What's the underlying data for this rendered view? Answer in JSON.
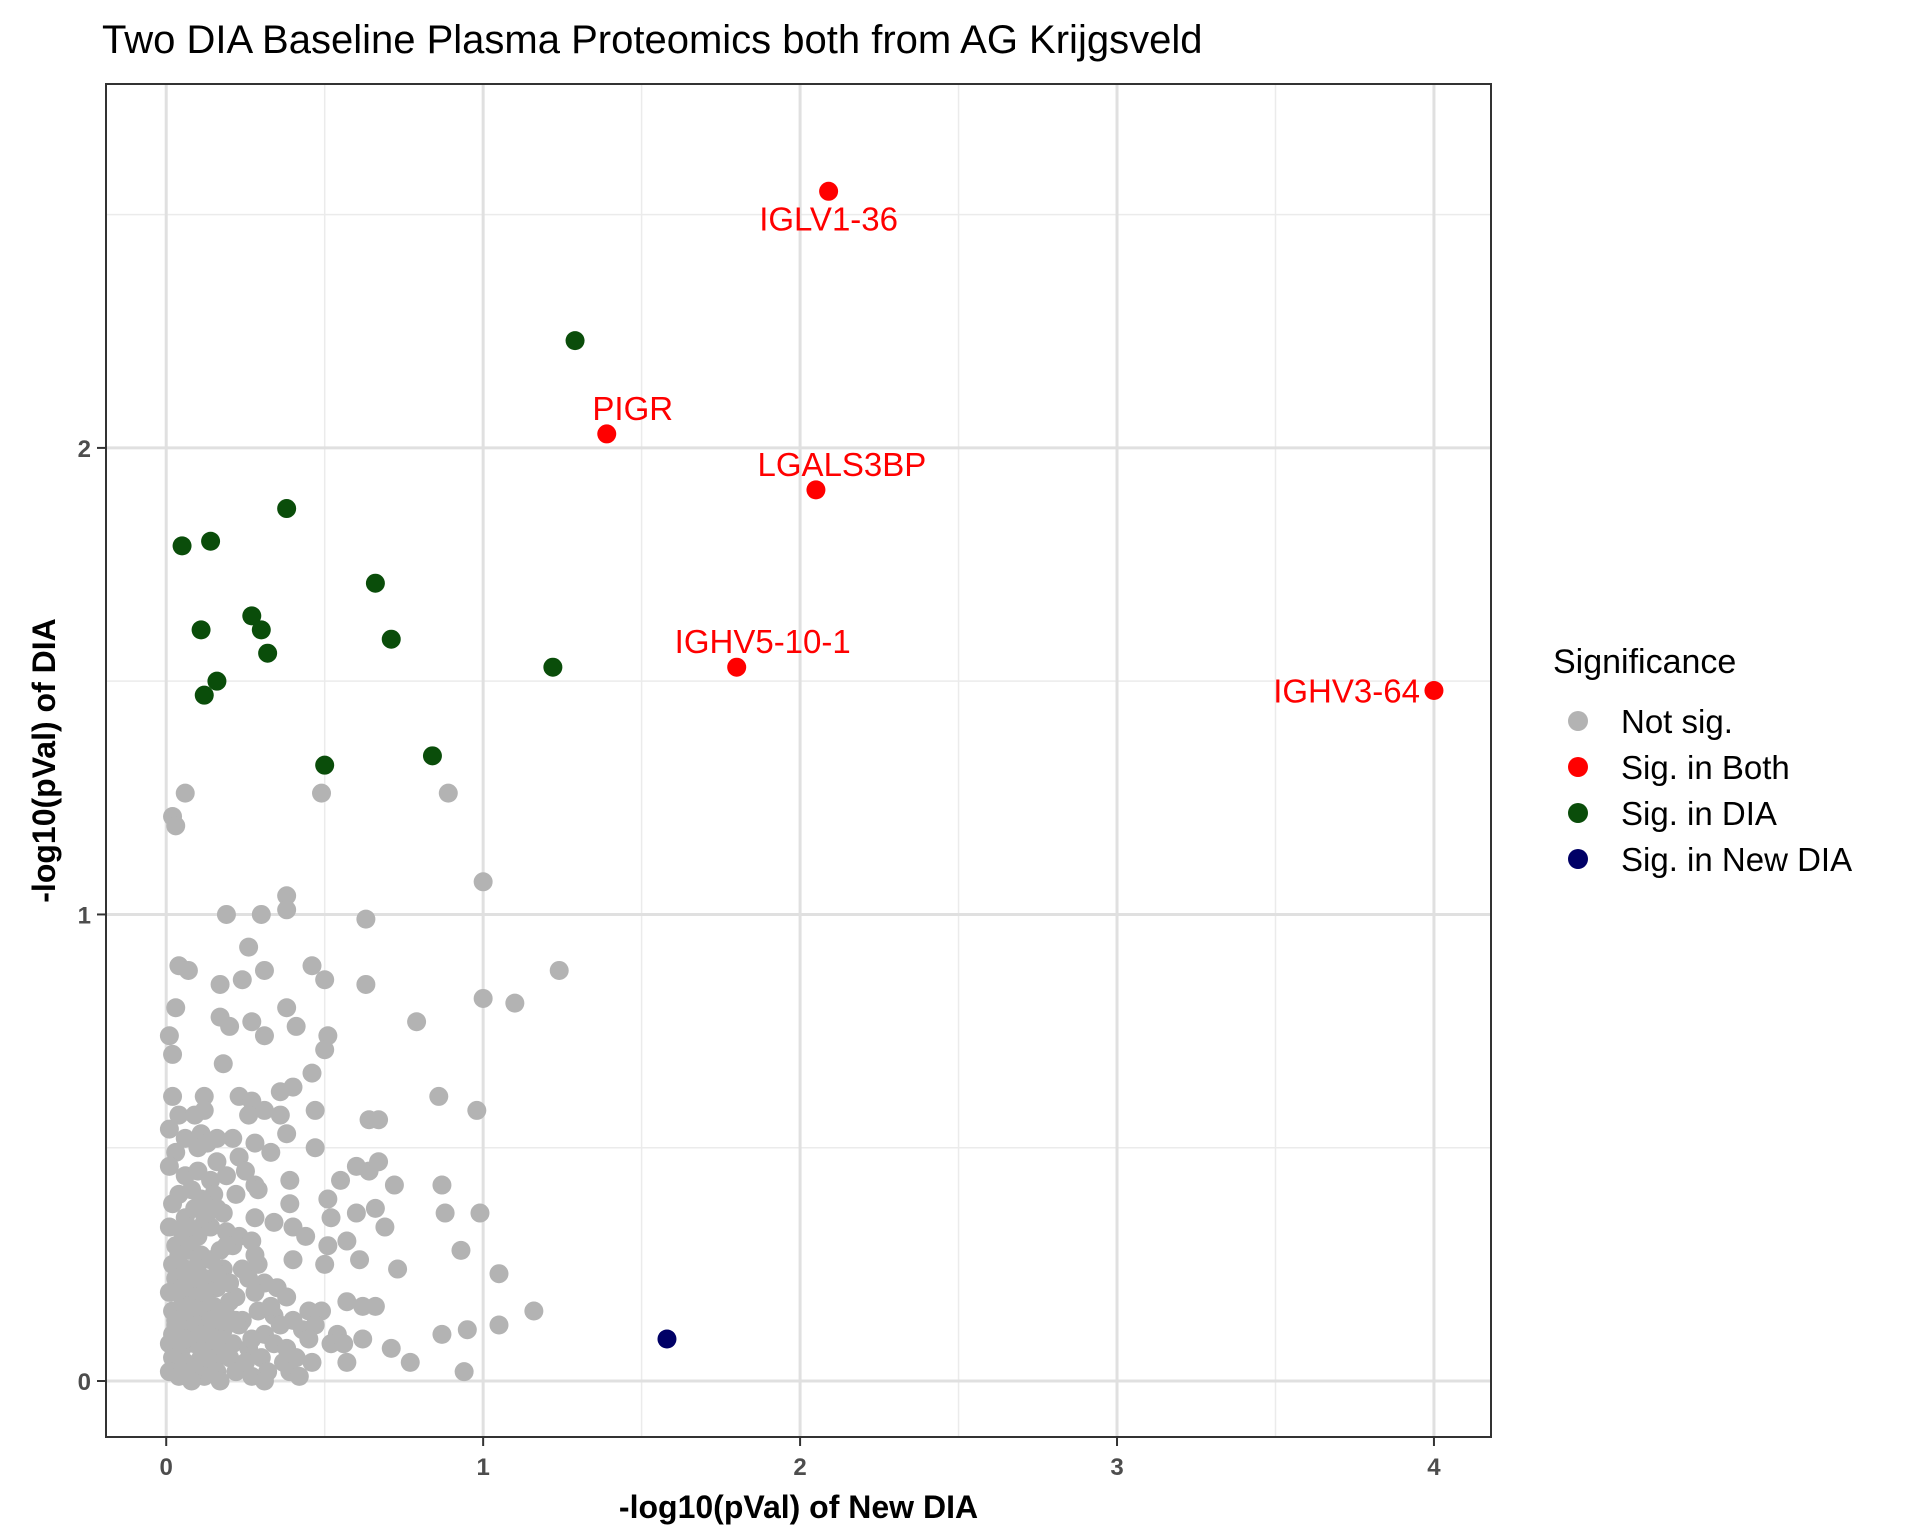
{
  "chart_data": {
    "type": "scatter",
    "title": "Two DIA Baseline Plasma Proteomics both from AG Krijgsveld",
    "xlabel": "-log10(pVal) of New DIA",
    "ylabel": "-log10(pVal) of DIA",
    "xlim": [
      -0.19,
      4.18
    ],
    "ylim": [
      -0.12,
      2.78
    ],
    "x_ticks": [
      0,
      1,
      2,
      3,
      4
    ],
    "y_ticks": [
      0,
      1,
      2
    ],
    "x_tick_labels": [
      "0",
      "1",
      "2",
      "3",
      "4"
    ],
    "y_tick_labels": [
      "0",
      "1",
      "2"
    ],
    "grid": true,
    "legend": {
      "title": "Significance",
      "position": "right",
      "entries": [
        {
          "label": "Not sig.",
          "color": "#b3b3b3"
        },
        {
          "label": "Sig. in Both",
          "color": "#ff0000"
        },
        {
          "label": "Sig. in DIA",
          "color": "#0a4d0a"
        },
        {
          "label": "Sig. in New DIA",
          "color": "#000066"
        }
      ]
    },
    "series": [
      {
        "name": "Not sig.",
        "color": "#b3b3b3",
        "points": [
          [
            0.02,
            1.21
          ],
          [
            0.03,
            1.19
          ],
          [
            0.06,
            1.26
          ],
          [
            0.49,
            1.26
          ],
          [
            0.89,
            1.26
          ],
          [
            1.0,
            1.07
          ],
          [
            0.38,
            1.04
          ],
          [
            0.19,
            1.0
          ],
          [
            0.3,
            1.0
          ],
          [
            0.38,
            1.01
          ],
          [
            0.63,
            0.99
          ],
          [
            0.26,
            0.93
          ],
          [
            0.04,
            0.89
          ],
          [
            0.07,
            0.88
          ],
          [
            0.31,
            0.88
          ],
          [
            0.46,
            0.89
          ],
          [
            0.5,
            0.86
          ],
          [
            0.17,
            0.85
          ],
          [
            0.24,
            0.86
          ],
          [
            0.63,
            0.85
          ],
          [
            1.24,
            0.88
          ],
          [
            0.03,
            0.8
          ],
          [
            1.0,
            0.82
          ],
          [
            1.1,
            0.81
          ],
          [
            0.17,
            0.78
          ],
          [
            0.2,
            0.76
          ],
          [
            0.27,
            0.77
          ],
          [
            0.38,
            0.8
          ],
          [
            0.41,
            0.76
          ],
          [
            0.79,
            0.77
          ],
          [
            0.01,
            0.74
          ],
          [
            0.31,
            0.74
          ],
          [
            0.51,
            0.74
          ],
          [
            0.02,
            0.7
          ],
          [
            0.5,
            0.71
          ],
          [
            0.18,
            0.68
          ],
          [
            0.46,
            0.66
          ],
          [
            0.02,
            0.61
          ],
          [
            0.12,
            0.61
          ],
          [
            0.23,
            0.61
          ],
          [
            0.27,
            0.6
          ],
          [
            0.36,
            0.62
          ],
          [
            0.4,
            0.63
          ],
          [
            0.86,
            0.61
          ],
          [
            0.04,
            0.57
          ],
          [
            0.09,
            0.57
          ],
          [
            0.12,
            0.58
          ],
          [
            0.26,
            0.57
          ],
          [
            0.31,
            0.58
          ],
          [
            0.36,
            0.57
          ],
          [
            0.47,
            0.58
          ],
          [
            0.64,
            0.56
          ],
          [
            0.67,
            0.56
          ],
          [
            0.98,
            0.58
          ],
          [
            0.01,
            0.54
          ],
          [
            0.06,
            0.52
          ],
          [
            0.11,
            0.53
          ],
          [
            0.16,
            0.52
          ],
          [
            0.21,
            0.52
          ],
          [
            0.28,
            0.51
          ],
          [
            0.38,
            0.53
          ],
          [
            0.47,
            0.5
          ],
          [
            0.03,
            0.49
          ],
          [
            0.1,
            0.5
          ],
          [
            0.13,
            0.51
          ],
          [
            0.23,
            0.48
          ],
          [
            0.33,
            0.49
          ],
          [
            0.6,
            0.46
          ],
          [
            0.64,
            0.45
          ],
          [
            0.67,
            0.47
          ],
          [
            0.01,
            0.46
          ],
          [
            0.06,
            0.44
          ],
          [
            0.1,
            0.45
          ],
          [
            0.14,
            0.43
          ],
          [
            0.19,
            0.44
          ],
          [
            0.25,
            0.45
          ],
          [
            0.28,
            0.42
          ],
          [
            0.39,
            0.43
          ],
          [
            0.55,
            0.43
          ],
          [
            0.72,
            0.42
          ],
          [
            0.87,
            0.42
          ],
          [
            0.04,
            0.4
          ],
          [
            0.08,
            0.41
          ],
          [
            0.15,
            0.4
          ],
          [
            0.22,
            0.4
          ],
          [
            0.29,
            0.41
          ],
          [
            0.02,
            0.38
          ],
          [
            0.09,
            0.37
          ],
          [
            0.16,
            0.37
          ],
          [
            0.39,
            0.38
          ],
          [
            0.51,
            0.39
          ],
          [
            0.6,
            0.36
          ],
          [
            0.66,
            0.37
          ],
          [
            0.06,
            0.35
          ],
          [
            0.12,
            0.34
          ],
          [
            0.18,
            0.36
          ],
          [
            0.28,
            0.35
          ],
          [
            0.34,
            0.34
          ],
          [
            0.52,
            0.35
          ],
          [
            0.88,
            0.36
          ],
          [
            0.99,
            0.36
          ],
          [
            0.01,
            0.33
          ],
          [
            0.05,
            0.32
          ],
          [
            0.1,
            0.31
          ],
          [
            0.14,
            0.33
          ],
          [
            0.19,
            0.32
          ],
          [
            0.23,
            0.31
          ],
          [
            0.27,
            0.3
          ],
          [
            0.4,
            0.33
          ],
          [
            0.44,
            0.31
          ],
          [
            0.69,
            0.33
          ],
          [
            0.03,
            0.29
          ],
          [
            0.07,
            0.28
          ],
          [
            0.11,
            0.27
          ],
          [
            0.17,
            0.28
          ],
          [
            0.21,
            0.29
          ],
          [
            0.51,
            0.29
          ],
          [
            0.57,
            0.3
          ],
          [
            0.93,
            0.28
          ],
          [
            0.02,
            0.25
          ],
          [
            0.06,
            0.24
          ],
          [
            0.1,
            0.25
          ],
          [
            0.14,
            0.26
          ],
          [
            0.18,
            0.24
          ],
          [
            0.29,
            0.25
          ],
          [
            0.4,
            0.26
          ],
          [
            0.5,
            0.25
          ],
          [
            0.61,
            0.26
          ],
          [
            0.73,
            0.24
          ],
          [
            0.03,
            0.22
          ],
          [
            0.08,
            0.21
          ],
          [
            0.12,
            0.22
          ],
          [
            0.16,
            0.2
          ],
          [
            0.2,
            0.21
          ],
          [
            0.26,
            0.22
          ],
          [
            0.31,
            0.21
          ],
          [
            0.35,
            0.2
          ],
          [
            1.05,
            0.23
          ],
          [
            0.01,
            0.19
          ],
          [
            0.05,
            0.18
          ],
          [
            0.09,
            0.18
          ],
          [
            0.13,
            0.17
          ],
          [
            0.22,
            0.18
          ],
          [
            0.28,
            0.19
          ],
          [
            0.38,
            0.18
          ],
          [
            0.57,
            0.17
          ],
          [
            0.02,
            0.15
          ],
          [
            0.07,
            0.14
          ],
          [
            0.11,
            0.15
          ],
          [
            0.15,
            0.16
          ],
          [
            0.19,
            0.14
          ],
          [
            0.24,
            0.13
          ],
          [
            0.29,
            0.15
          ],
          [
            0.34,
            0.14
          ],
          [
            0.4,
            0.13
          ],
          [
            0.45,
            0.15
          ],
          [
            0.49,
            0.15
          ],
          [
            0.62,
            0.16
          ],
          [
            0.66,
            0.16
          ],
          [
            1.16,
            0.15
          ],
          [
            0.03,
            0.12
          ],
          [
            0.06,
            0.11
          ],
          [
            0.1,
            0.12
          ],
          [
            0.14,
            0.1
          ],
          [
            0.18,
            0.11
          ],
          [
            0.23,
            0.12
          ],
          [
            0.31,
            0.1
          ],
          [
            0.43,
            0.11
          ],
          [
            0.47,
            0.12
          ],
          [
            0.54,
            0.1
          ],
          [
            0.87,
            0.1
          ],
          [
            0.95,
            0.11
          ],
          [
            1.05,
            0.12
          ],
          [
            0.01,
            0.08
          ],
          [
            0.05,
            0.07
          ],
          [
            0.09,
            0.08
          ],
          [
            0.13,
            0.07
          ],
          [
            0.17,
            0.09
          ],
          [
            0.21,
            0.08
          ],
          [
            0.26,
            0.07
          ],
          [
            0.34,
            0.08
          ],
          [
            0.38,
            0.07
          ],
          [
            0.45,
            0.09
          ],
          [
            0.52,
            0.08
          ],
          [
            0.56,
            0.08
          ],
          [
            0.62,
            0.09
          ],
          [
            0.02,
            0.05
          ],
          [
            0.06,
            0.04
          ],
          [
            0.11,
            0.05
          ],
          [
            0.15,
            0.04
          ],
          [
            0.2,
            0.05
          ],
          [
            0.25,
            0.04
          ],
          [
            0.3,
            0.05
          ],
          [
            0.37,
            0.04
          ],
          [
            0.41,
            0.05
          ],
          [
            0.46,
            0.04
          ],
          [
            0.57,
            0.04
          ],
          [
            0.71,
            0.07
          ],
          [
            0.77,
            0.04
          ],
          [
            0.01,
            0.02
          ],
          [
            0.04,
            0.01
          ],
          [
            0.08,
            0.02
          ],
          [
            0.12,
            0.01
          ],
          [
            0.16,
            0.02
          ],
          [
            0.22,
            0.02
          ],
          [
            0.27,
            0.01
          ],
          [
            0.32,
            0.02
          ],
          [
            0.39,
            0.02
          ],
          [
            0.42,
            0.01
          ],
          [
            0.94,
            0.02
          ],
          [
            0.31,
            0.0
          ],
          [
            0.03,
            0.13
          ],
          [
            0.07,
            0.16
          ],
          [
            0.12,
            0.19
          ],
          [
            0.16,
            0.23
          ],
          [
            0.04,
            0.27
          ],
          [
            0.08,
            0.3
          ],
          [
            0.13,
            0.36
          ],
          [
            0.05,
            0.2
          ],
          [
            0.09,
            0.22
          ],
          [
            0.14,
            0.13
          ],
          [
            0.18,
            0.06
          ],
          [
            0.06,
            0.09
          ],
          [
            0.1,
            0.03
          ],
          [
            0.15,
            0.09
          ],
          [
            0.2,
            0.17
          ],
          [
            0.02,
            0.1
          ],
          [
            0.11,
            0.1
          ],
          [
            0.17,
            0.0
          ],
          [
            0.08,
            0.0
          ],
          [
            0.13,
            0.05
          ],
          [
            0.22,
            0.13
          ],
          [
            0.27,
            0.09
          ],
          [
            0.07,
            0.33
          ],
          [
            0.11,
            0.39
          ],
          [
            0.16,
            0.47
          ],
          [
            0.19,
            0.29
          ],
          [
            0.24,
            0.24
          ],
          [
            0.33,
            0.16
          ],
          [
            0.36,
            0.12
          ],
          [
            0.28,
            0.27
          ]
        ]
      },
      {
        "name": "Sig. in Both",
        "color": "#ff0000",
        "points": [
          [
            2.09,
            2.55
          ],
          [
            1.39,
            2.03
          ],
          [
            2.05,
            1.91
          ],
          [
            1.8,
            1.53
          ],
          [
            4.0,
            1.48
          ]
        ]
      },
      {
        "name": "Sig. in DIA",
        "color": "#0a4d0a",
        "points": [
          [
            1.29,
            2.23
          ],
          [
            0.38,
            1.87
          ],
          [
            0.05,
            1.79
          ],
          [
            0.14,
            1.8
          ],
          [
            0.66,
            1.71
          ],
          [
            0.27,
            1.64
          ],
          [
            0.11,
            1.61
          ],
          [
            0.3,
            1.61
          ],
          [
            0.71,
            1.59
          ],
          [
            0.32,
            1.56
          ],
          [
            1.22,
            1.53
          ],
          [
            0.16,
            1.5
          ],
          [
            0.12,
            1.47
          ],
          [
            0.84,
            1.34
          ],
          [
            0.5,
            1.32
          ]
        ]
      },
      {
        "name": "Sig. in New DIA",
        "color": "#000066",
        "points": [
          [
            1.58,
            0.09
          ]
        ]
      }
    ],
    "labels": [
      {
        "text": "IGLV1-36",
        "x": 2.09,
        "y": 2.55,
        "anchor": "below"
      },
      {
        "text": "PIGR",
        "x": 1.39,
        "y": 2.03,
        "anchor": "above"
      },
      {
        "text": "LGALS3BP",
        "x": 2.05,
        "y": 1.91,
        "anchor": "above"
      },
      {
        "text": "IGHV5-10-1",
        "x": 1.8,
        "y": 1.53,
        "anchor": "above"
      },
      {
        "text": "IGHV3-64",
        "x": 4.0,
        "y": 1.48,
        "anchor": "left"
      }
    ]
  }
}
